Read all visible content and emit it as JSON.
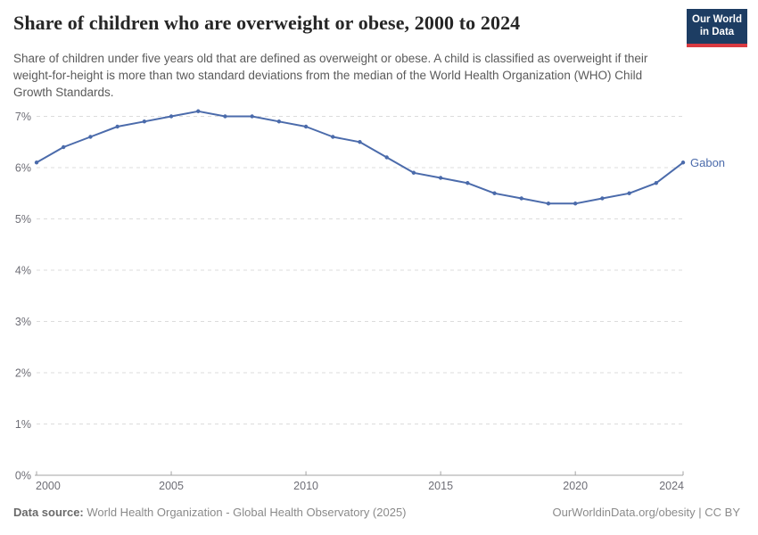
{
  "header": {
    "title": "Share of children who are overweight or obese, 2000 to 2024",
    "subtitle": "Share of children under five years old that are defined as overweight or obese. A child is classified as overweight if their weight-for-height is more than two standard deviations from the median of the World Health Organization (WHO) Child Growth Standards.",
    "logo": {
      "line1": "Our World",
      "line2": "in Data",
      "bg_color": "#1d3d63",
      "bar_color": "#d93a41"
    }
  },
  "chart_data": {
    "type": "line",
    "title": "Share of children who are overweight or obese, 2000 to 2024",
    "series": [
      {
        "name": "Gabon",
        "color": "#4b6bab",
        "x": [
          2000,
          2001,
          2002,
          2003,
          2004,
          2005,
          2006,
          2007,
          2008,
          2009,
          2010,
          2011,
          2012,
          2013,
          2014,
          2015,
          2016,
          2017,
          2018,
          2019,
          2020,
          2021,
          2022,
          2023,
          2024
        ],
        "values": [
          6.1,
          6.4,
          6.6,
          6.8,
          6.9,
          7.0,
          7.1,
          7.0,
          7.0,
          6.9,
          6.8,
          6.6,
          6.5,
          6.2,
          5.9,
          5.8,
          5.7,
          5.5,
          5.4,
          5.3,
          5.3,
          5.4,
          5.5,
          5.7,
          6.1
        ]
      }
    ],
    "xlabel": "",
    "ylabel": "",
    "x_range": [
      2000,
      2024
    ],
    "ylim": [
      0,
      7
    ],
    "x_ticks": [
      2000,
      2005,
      2010,
      2015,
      2020,
      2024
    ],
    "y_ticks": [
      0,
      1,
      2,
      3,
      4,
      5,
      6,
      7
    ],
    "y_tick_suffix": "%",
    "unit": "%",
    "grid": "horizontal-dashed",
    "legend": "line-end-label",
    "grid_color": "#dcdcdc",
    "axis_color": "#a3a3a3",
    "tick_label_color": "#6e6e76"
  },
  "footer": {
    "source_label": "Data source:",
    "source_text": " World Health Organization - Global Health Observatory (2025)",
    "right_text": "OurWorldinData.org/obesity | CC BY"
  }
}
